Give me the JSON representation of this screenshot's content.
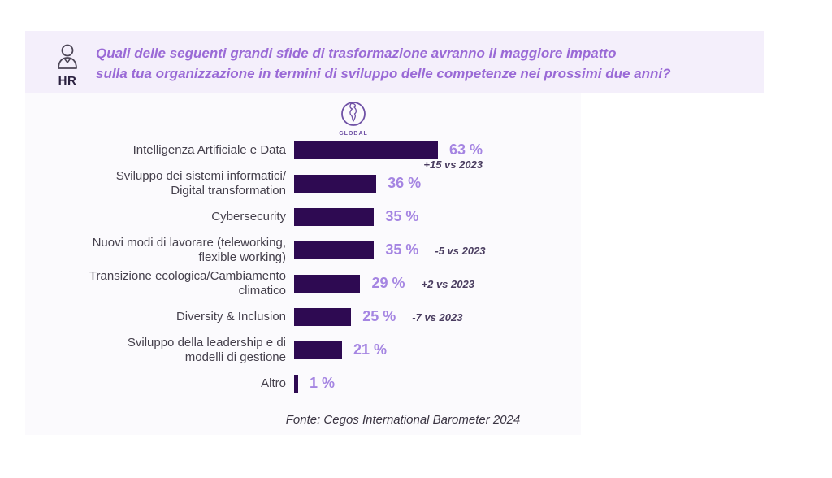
{
  "header": {
    "role_label": "HR",
    "question_line1": "Quali delle seguenti grandi sfide di trasformazione avranno il maggiore impatto",
    "question_line2": "sulla tua organizzazione in termini di sviluppo delle competenze nei prossimi due anni?"
  },
  "chart_data": {
    "type": "bar",
    "orientation": "horizontal",
    "title": "Quali delle seguenti grandi sfide di trasformazione avranno il maggiore impatto sulla tua organizzazione in termini di sviluppo delle competenze nei prossimi due anni?",
    "group_label": "GLOBAL",
    "unit": "%",
    "xlim": [
      0,
      100
    ],
    "categories": [
      "Intelligenza Artificiale e Data",
      "Sviluppo dei sistemi informatici/Digital transformation",
      "Cybersecurity",
      "Nuovi modi di lavorare (teleworking, flexible working)",
      "Transizione ecologica/Cambiamento climatico",
      "Diversity & Inclusion",
      "Sviluppo della leadership e di modelli di gestione",
      "Altro"
    ],
    "values": [
      63,
      36,
      35,
      35,
      29,
      25,
      21,
      1
    ],
    "rows": [
      {
        "label_line1": "Intelligenza Artificiale e Data",
        "label_line2": "",
        "value": 63,
        "value_label": "63 %",
        "delta": "+15 vs 2023",
        "delta_position": "below"
      },
      {
        "label_line1": "Sviluppo dei sistemi informatici/",
        "label_line2": "Digital transformation",
        "value": 36,
        "value_label": "36 %",
        "delta": "",
        "delta_position": "none"
      },
      {
        "label_line1": "Cybersecurity",
        "label_line2": "",
        "value": 35,
        "value_label": "35 %",
        "delta": "",
        "delta_position": "none"
      },
      {
        "label_line1": "Nuovi modi di lavorare (teleworking,",
        "label_line2": "flexible working)",
        "value": 35,
        "value_label": "35 %",
        "delta": "-5 vs 2023",
        "delta_position": "right"
      },
      {
        "label_line1": "Transizione ecologica/Cambiamento",
        "label_line2": "climatico",
        "value": 29,
        "value_label": "29 %",
        "delta": "+2 vs 2023",
        "delta_position": "right"
      },
      {
        "label_line1": "Diversity & Inclusion",
        "label_line2": "",
        "value": 25,
        "value_label": "25 %",
        "delta": "-7 vs 2023",
        "delta_position": "right"
      },
      {
        "label_line1": "Sviluppo della leadership e di",
        "label_line2": "modelli di gestione",
        "value": 21,
        "value_label": "21 %",
        "delta": "",
        "delta_position": "none"
      },
      {
        "label_line1": "Altro",
        "label_line2": "",
        "value": 1,
        "value_label": "1 %",
        "delta": "",
        "delta_position": "none"
      }
    ],
    "source": "Fonte: Cegos International Barometer 2024"
  },
  "colors": {
    "bar_fill": "#2e0a52",
    "value_text": "#a585e2",
    "delta_text": "#4a3d60",
    "question_text": "#9a6ad6",
    "banner_bg": "#f4effb",
    "panel_bg": "#fbfafd",
    "category_text": "#45404c",
    "globe_purple": "#6f51a5"
  }
}
